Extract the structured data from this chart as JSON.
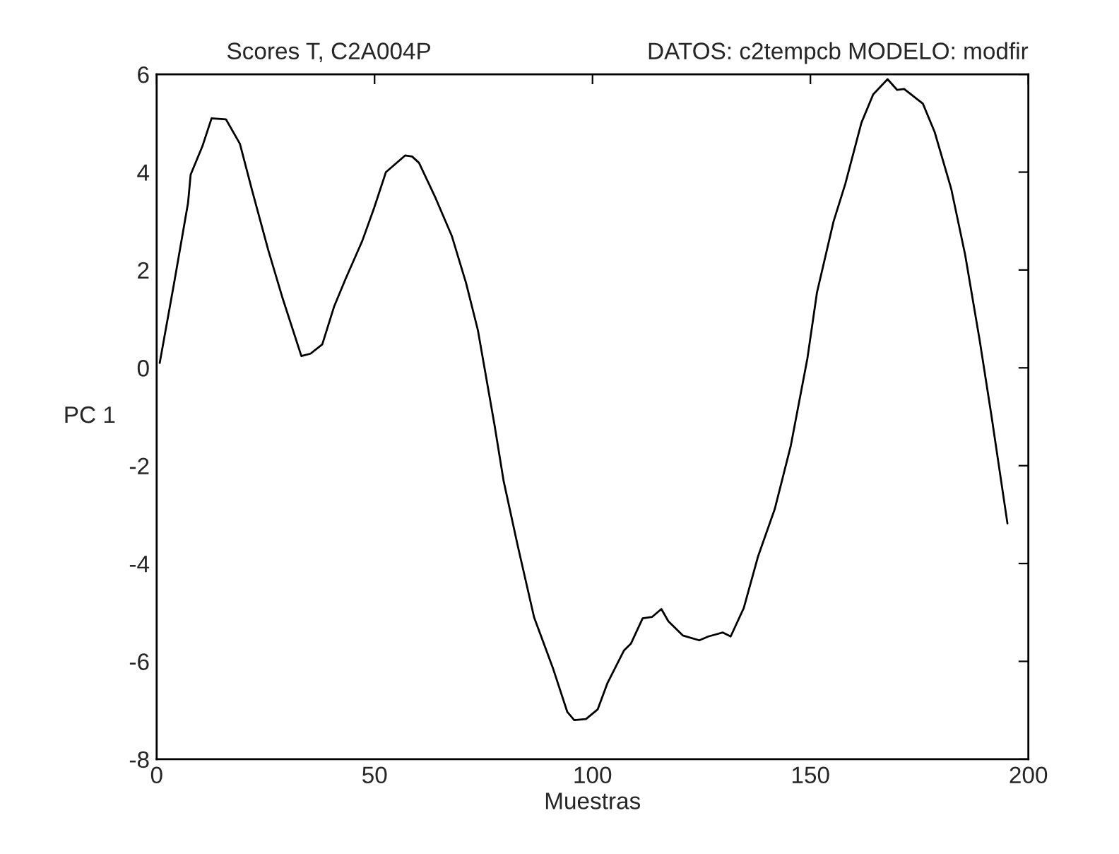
{
  "chart_data": {
    "type": "line",
    "title": "Scores T, C2A004P",
    "subtitle": "DATOS: c2tempcb MODELO: modfir",
    "xlabel": "Muestras",
    "ylabel": "PC 1",
    "x": [
      0.7,
      4,
      7.2,
      7.8,
      10.5,
      12.6,
      15.9,
      19.1,
      21.8,
      25.6,
      28.8,
      33.2,
      35.3,
      38,
      40.7,
      43.4,
      47.2,
      49.9,
      52.6,
      57,
      58.6,
      60.2,
      64,
      67.7,
      71,
      73.7,
      77.5,
      79.6,
      82.9,
      86.6,
      91,
      94.2,
      95.8,
      98.5,
      101.2,
      103.4,
      107.2,
      108.8,
      111.5,
      113.7,
      115.8,
      117.4,
      120.7,
      124.5,
      126.6,
      129.9,
      131.7,
      134.7,
      138,
      141.8,
      145.5,
      149.3,
      151.5,
      155.3,
      158,
      161.7,
      164.4,
      167.7,
      169.9,
      171.5,
      175.8,
      178.5,
      182.3,
      185.5,
      188.8,
      191.5,
      195.2
    ],
    "series": [
      {
        "color": "#000000",
        "values": [
          0.1,
          1.73,
          3.37,
          3.95,
          4.53,
          5.1,
          5.08,
          4.58,
          3.66,
          2.41,
          1.45,
          0.24,
          0.29,
          0.48,
          1.25,
          1.83,
          2.6,
          3.27,
          4.0,
          4.34,
          4.32,
          4.19,
          3.47,
          2.7,
          1.73,
          0.77,
          -1.16,
          -2.31,
          -3.66,
          -5.1,
          -6.16,
          -7.03,
          -7.2,
          -7.18,
          -6.98,
          -6.45,
          -5.78,
          -5.64,
          -5.12,
          -5.09,
          -4.93,
          -5.18,
          -5.47,
          -5.57,
          -5.49,
          -5.41,
          -5.49,
          -4.91,
          -3.85,
          -2.89,
          -1.59,
          0.19,
          1.54,
          2.99,
          3.76,
          5.01,
          5.59,
          5.9,
          5.68,
          5.7,
          5.4,
          4.82,
          3.66,
          2.31,
          0.58,
          -0.96,
          -3.18
        ]
      }
    ],
    "xlim": [
      0,
      200
    ],
    "xticks": [
      0,
      50,
      100,
      150,
      200
    ],
    "ylim": [
      -8,
      6
    ],
    "yticks": [
      -8,
      -6,
      -4,
      -2,
      0,
      2,
      4,
      6
    ],
    "grid": false,
    "legend": false,
    "marker": "none",
    "line_style": "solid"
  }
}
